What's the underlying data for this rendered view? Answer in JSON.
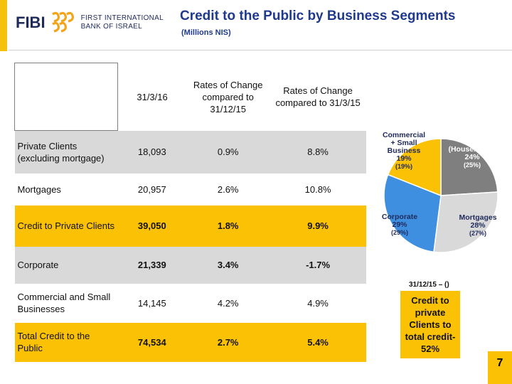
{
  "header": {
    "logo_name": "FIBI",
    "bank_line1": "FIRST INTERNATIONAL",
    "bank_line2": "BANK OF ISRAEL",
    "title": "Credit to the Public by Business Segments",
    "subtitle": "(Millions NIS)"
  },
  "table": {
    "columns": [
      "31/3/16",
      "Rates of Change compared to 31/12/15",
      "Rates of Change compared to 31/3/15"
    ],
    "rows": [
      {
        "label": "Private Clients (excluding mortgage)",
        "v1": "18,093",
        "v2": "0.9%",
        "v3": "8.8%"
      },
      {
        "label": "Mortgages",
        "v1": "20,957",
        "v2": "2.6%",
        "v3": "10.8%"
      },
      {
        "label": "Credit to Private Clients",
        "v1": "39,050",
        "v2": "1.8%",
        "v3": "9.9%"
      },
      {
        "label": "Corporate",
        "v1": "21,339",
        "v2": "3.4%",
        "v3": "-1.7%"
      },
      {
        "label": "Commercial and Small Businesses",
        "v1": "14,145",
        "v2": "4.2%",
        "v3": "4.9%"
      },
      {
        "label": "Total Credit to the Public",
        "v1": "74,534",
        "v2": "2.7%",
        "v3": "5.4%"
      }
    ]
  },
  "chart_data": {
    "type": "pie",
    "slices": [
      {
        "label": "Private + Retail (Households)",
        "value": 24,
        "prior": "(25%)",
        "color": "#7f7f7f"
      },
      {
        "label": "Mortgages",
        "value": 28,
        "prior": "(27%)",
        "color": "#d9d9d9"
      },
      {
        "label": "Corporate",
        "value": 29,
        "prior": "(29%)",
        "color": "#3f8fe0"
      },
      {
        "label": "Commercial + Small Business",
        "value": 19,
        "prior": "(19%)",
        "color": "#fbc105"
      }
    ],
    "caption": "31/12/15 – ()"
  },
  "callout": {
    "line1": "Credit to",
    "line2": "private",
    "line3": "Clients to",
    "line4": "total credit-",
    "line5": "52%"
  },
  "page_number": "7",
  "colors": {
    "accent": "#fbc105",
    "title": "#1f3a8c",
    "grey_row": "#d9d9d9"
  }
}
